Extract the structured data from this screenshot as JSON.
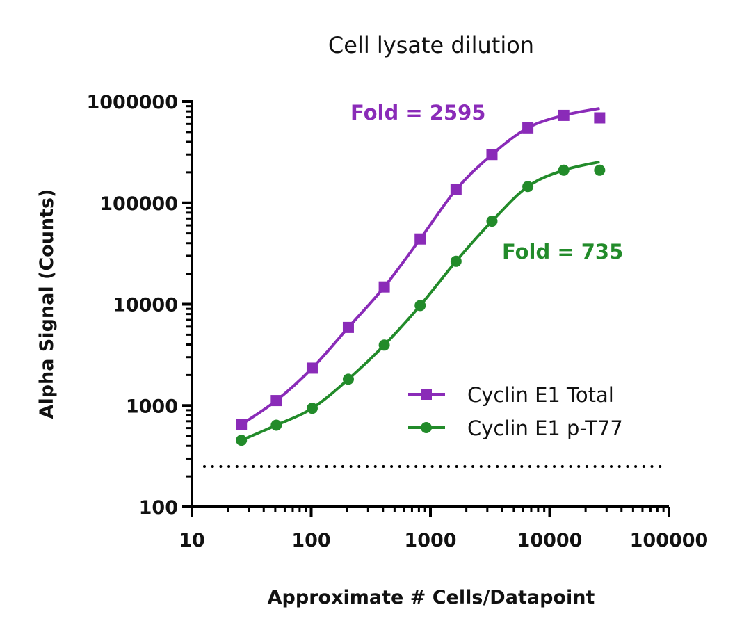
{
  "chart_data": {
    "type": "line",
    "title": "Cell lysate dilution",
    "xlabel": "Approximate # Cells/Datapoint",
    "ylabel": "Alpha Signal (Counts)",
    "xscale": "log",
    "yscale": "log",
    "xlim": [
      10,
      100000
    ],
    "ylim": [
      100,
      1000000
    ],
    "xticks": [
      "10",
      "100",
      "1000",
      "10000",
      "100000"
    ],
    "yticks": [
      "100",
      "1000",
      "10000",
      "100000",
      "1000000"
    ],
    "grid": false,
    "legend_position": "lower-right",
    "x": [
      26,
      51,
      102,
      205,
      410,
      820,
      1640,
      3280,
      6560,
      13120,
      26240
    ],
    "series": [
      {
        "name": "Cyclin E1 Total",
        "color": "#8A2BB8",
        "marker": "square",
        "values": [
          650,
          1120,
          2340,
          5900,
          14800,
          44000,
          135000,
          300000,
          550000,
          730000,
          690000
        ]
      },
      {
        "name": "Cyclin E1 p-T77",
        "color": "#228B2A",
        "marker": "circle",
        "values": [
          455,
          640,
          940,
          1820,
          3950,
          9700,
          26500,
          66000,
          145000,
          210000,
          210000
        ]
      }
    ],
    "baseline": {
      "value": 250,
      "style": "dotted"
    },
    "annotations": [
      {
        "text": "Fold = 2595",
        "series": "Cyclin E1 Total"
      },
      {
        "text": "Fold = 735",
        "series": "Cyclin E1 p-T77"
      }
    ]
  }
}
